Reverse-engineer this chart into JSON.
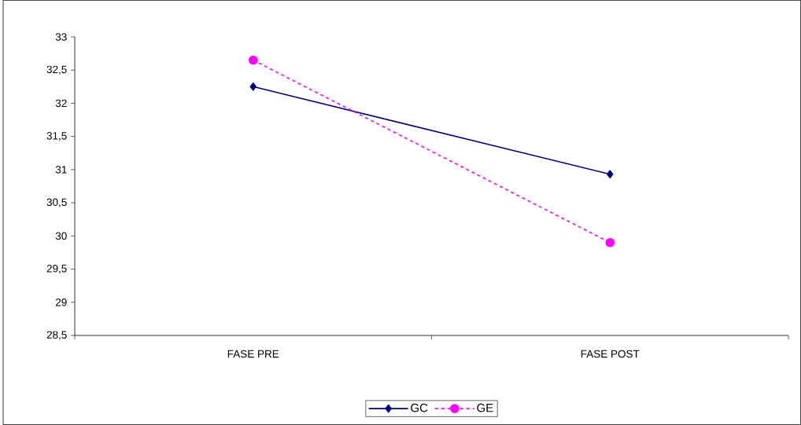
{
  "chart_data": {
    "type": "line",
    "categories": [
      "FASE PRE",
      "FASE POST"
    ],
    "series": [
      {
        "name": "GC",
        "color": "#000080",
        "values": [
          32.25,
          30.93
        ],
        "marker": "diamond",
        "line_style": "solid"
      },
      {
        "name": "GE",
        "color": "#ff00ff",
        "values": [
          32.65,
          29.9
        ],
        "marker": "circle",
        "line_style": "dashed"
      }
    ],
    "ylim": [
      28.5,
      33
    ],
    "yticks": [
      {
        "value": 28.5,
        "label": "28,5"
      },
      29,
      {
        "value": 29.5,
        "label": "29,5"
      },
      30,
      {
        "value": 30.5,
        "label": "30,5"
      },
      31,
      {
        "value": 31.5,
        "label": "31,5"
      },
      32,
      {
        "value": 32.5,
        "label": "32,5"
      },
      33
    ],
    "legend": "bottom"
  }
}
